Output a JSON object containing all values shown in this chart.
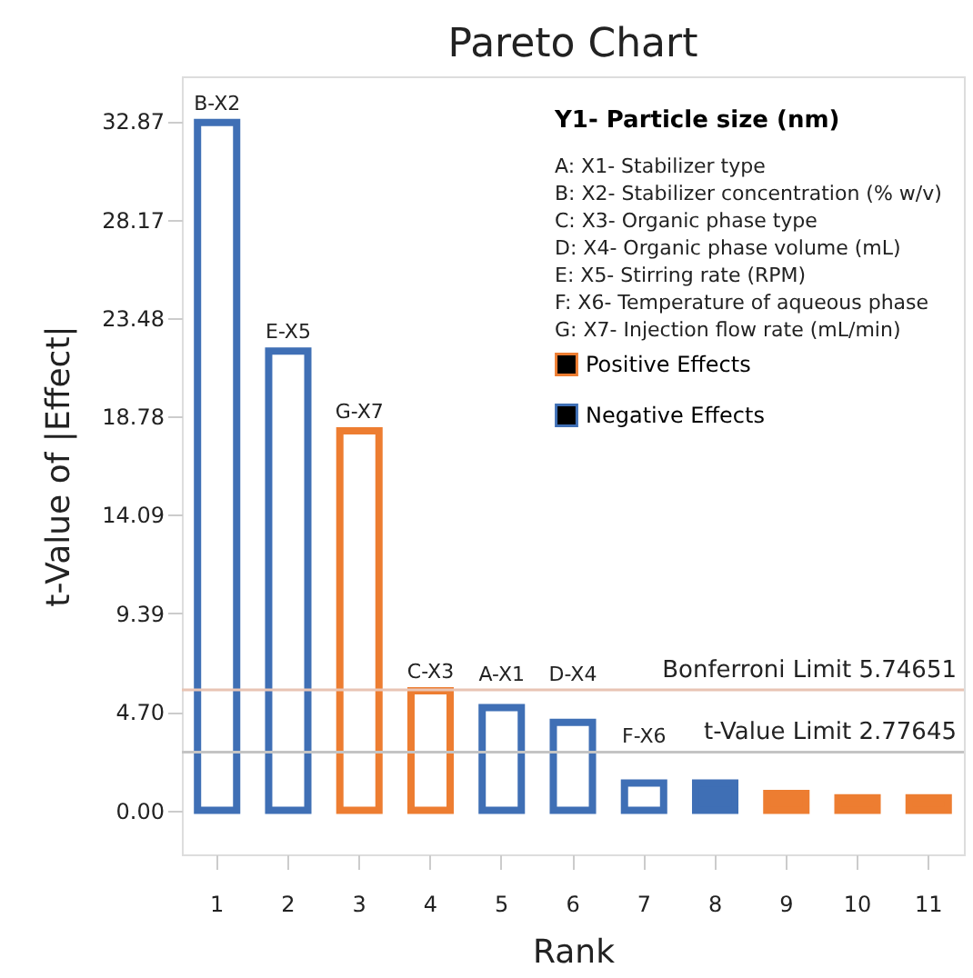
{
  "chart_data": {
    "type": "bar",
    "title": "Pareto Chart",
    "xlabel": "Rank",
    "ylabel": "t-Value of |Effect|",
    "legend_title": "Y1- Particle size (nm)",
    "legend": "top right",
    "categories": [
      "1",
      "2",
      "3",
      "4",
      "5",
      "6",
      "7",
      "8",
      "9",
      "10",
      "11"
    ],
    "series": [
      {
        "name": "Positive Effects",
        "color": "#ed7d31",
        "values": [
          null,
          null,
          18.1,
          5.7,
          null,
          null,
          null,
          null,
          0.8,
          0.6,
          0.6
        ],
        "value_labels": [
          null,
          null,
          "G-X7",
          "C-X3",
          null,
          null,
          null,
          null,
          null,
          null,
          null
        ]
      },
      {
        "name": "Negative Effects",
        "color": "#3f6fb5",
        "values": [
          32.8,
          21.9,
          null,
          null,
          4.9,
          4.2,
          1.3,
          1.3,
          null,
          null,
          null
        ],
        "value_labels": [
          "B-X2",
          "E-X5",
          null,
          null,
          "A-X1",
          "D-X4",
          "F-X6",
          null,
          null,
          null,
          null
        ]
      }
    ],
    "ylim": [
      -2.1,
      35.0
    ],
    "yticks": [
      {
        "value": 0,
        "label": "0.00"
      },
      {
        "value": 4.7,
        "label": "4.70"
      },
      {
        "value": 9.39,
        "label": "9.39"
      },
      {
        "value": 14.09,
        "label": "14.09"
      },
      {
        "value": 18.78,
        "label": "18.78"
      },
      {
        "value": 23.48,
        "label": "23.48"
      },
      {
        "value": 28.17,
        "label": "28.17"
      },
      {
        "value": 32.87,
        "label": "32.87"
      }
    ],
    "ref_lines": [
      {
        "axis": "y",
        "value": 5.74651,
        "label": "Bonferroni Limit 5.74651",
        "color": "#e8c4b4"
      },
      {
        "axis": "y",
        "value": 2.77645,
        "label": "t-Value Limit 2.77645",
        "color": "#c4c4c4"
      }
    ],
    "annotations": [
      "A: X1- Stabilizer type",
      "B: X2- Stabilizer concentration (% w/v)",
      "C: X3- Organic phase type",
      "D: X4- Organic phase volume (mL)",
      "E: X5- Stirring rate (RPM)",
      "F: X6- Temperature of aqueous phase",
      "G: X7- Injection flow rate (mL/min)"
    ],
    "grid": false
  }
}
